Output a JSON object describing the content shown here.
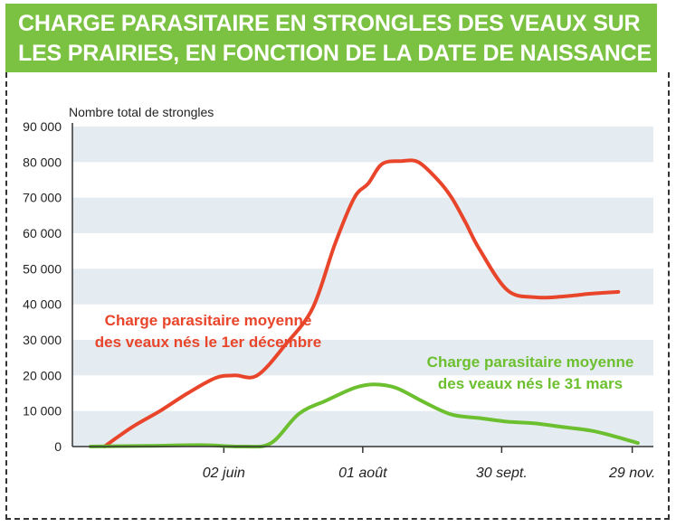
{
  "chart_data": {
    "type": "line",
    "title_lines": [
      "CHARGE PARASITAIRE EN STRONGLES DES VEAUX SUR",
      "LES PRAIRIES, EN FONCTION DE LA DATE DE NAISSANCE"
    ],
    "ylabel": "Nombre total de strongles",
    "ylim": [
      0,
      90000
    ],
    "yticks": [
      {
        "value": 0,
        "label": "0"
      },
      {
        "value": 10000,
        "label": "10 000"
      },
      {
        "value": 20000,
        "label": "20 000"
      },
      {
        "value": 30000,
        "label": "30 000"
      },
      {
        "value": 40000,
        "label": "40 000"
      },
      {
        "value": 50000,
        "label": "50 000"
      },
      {
        "value": 60000,
        "label": "60 000"
      },
      {
        "value": 70000,
        "label": "70 000"
      },
      {
        "value": 80000,
        "label": "80 000"
      },
      {
        "value": 90000,
        "label": "90 000"
      }
    ],
    "xlim": [
      0,
      200
    ],
    "xticks": [
      {
        "value": 48,
        "label": "02 juin"
      },
      {
        "value": 98,
        "label": "01 août"
      },
      {
        "value": 148,
        "label": "30 sept."
      },
      {
        "value": 195,
        "label": "29 nov."
      }
    ],
    "series": [
      {
        "name_lines": [
          "Charge parasitaire moyenne",
          "des veaux nés le 1er décembre"
        ],
        "color": "#e8452a",
        "x": [
          5,
          15,
          25,
          35,
          45,
          52,
          60,
          70,
          80,
          88,
          95,
          100,
          105,
          112,
          118,
          125,
          130,
          135,
          140,
          150,
          160,
          170,
          180,
          190
        ],
        "y": [
          0,
          5500,
          10000,
          15000,
          19300,
          20000,
          20000,
          28500,
          39000,
          57000,
          70000,
          74000,
          79500,
          80300,
          80000,
          75000,
          70000,
          63000,
          55500,
          44000,
          42000,
          42200,
          43000,
          43500
        ]
      },
      {
        "name_lines": [
          "Charge parasitaire moyenne",
          "des veaux nés le 31 mars"
        ],
        "color": "#6cbf2f",
        "x": [
          0,
          20,
          40,
          55,
          65,
          75,
          85,
          95,
          102,
          110,
          120,
          130,
          140,
          150,
          160,
          170,
          180,
          188,
          197
        ],
        "y": [
          0,
          200,
          400,
          0,
          1000,
          9200,
          13000,
          16500,
          17500,
          16500,
          12500,
          9000,
          8000,
          7000,
          6500,
          5500,
          4500,
          3000,
          1000
        ]
      }
    ]
  }
}
